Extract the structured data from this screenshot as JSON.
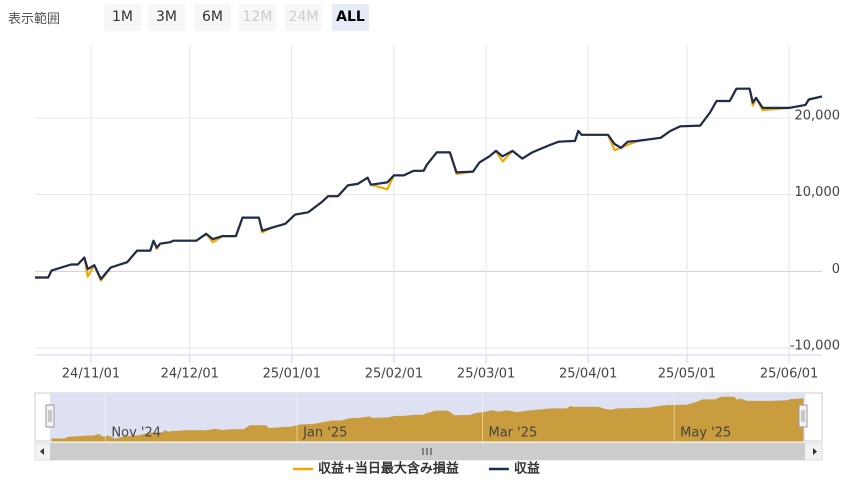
{
  "range_selector": {
    "label": "表示範囲",
    "buttons": [
      {
        "text": "1M",
        "state": "normal"
      },
      {
        "text": "3M",
        "state": "normal"
      },
      {
        "text": "6M",
        "state": "normal"
      },
      {
        "text": "12M",
        "state": "disabled"
      },
      {
        "text": "24M",
        "state": "disabled"
      },
      {
        "text": "ALL",
        "state": "selected"
      }
    ]
  },
  "chart_data": {
    "type": "line",
    "x": [
      "24/10/15",
      "24/10/19",
      "24/10/20",
      "24/10/23",
      "24/10/26",
      "24/10/28",
      "24/10/30",
      "24/10/31",
      "24/11/02",
      "24/11/04",
      "24/11/07",
      "24/11/12",
      "24/11/15",
      "24/11/19",
      "24/11/20",
      "24/11/21",
      "24/11/22",
      "24/11/25",
      "24/11/26",
      "24/12/03",
      "24/12/06",
      "24/12/08",
      "24/12/11",
      "24/12/15",
      "24/12/17",
      "24/12/22",
      "24/12/23",
      "24/12/26",
      "24/12/30",
      "25/01/02",
      "25/01/06",
      "25/01/10",
      "25/01/12",
      "25/01/15",
      "25/01/18",
      "25/01/21",
      "25/01/24",
      "25/01/25",
      "25/01/30",
      "25/02/01",
      "25/02/04",
      "25/02/07",
      "25/02/10",
      "25/02/11",
      "25/02/14",
      "25/02/18",
      "25/02/20",
      "25/02/25",
      "25/02/27",
      "25/03/02",
      "25/03/04",
      "25/03/06",
      "25/03/09",
      "25/03/12",
      "25/03/15",
      "25/03/20",
      "25/03/23",
      "25/03/28",
      "25/03/29",
      "25/03/30",
      "25/04/07",
      "25/04/09",
      "25/04/11",
      "25/04/13",
      "25/04/16",
      "25/04/23",
      "25/04/26",
      "25/04/29",
      "25/05/05",
      "25/05/08",
      "25/05/10",
      "25/05/14",
      "25/05/16",
      "25/05/20",
      "25/05/21",
      "25/05/22",
      "25/05/24",
      "25/06/01",
      "25/06/06",
      "25/06/07",
      "25/06/11"
    ],
    "series": [
      {
        "name": "収益+当日最大含み損益",
        "color": "#f2a900",
        "values": [
          -800,
          -800,
          100,
          500,
          900,
          900,
          1800,
          -700,
          800,
          -1200,
          500,
          1200,
          2700,
          2700,
          4000,
          2900,
          3600,
          3800,
          4000,
          4000,
          4900,
          3800,
          4600,
          4600,
          7000,
          7000,
          5100,
          5700,
          6200,
          7400,
          7700,
          9000,
          9800,
          9800,
          11200,
          11400,
          12200,
          11300,
          10700,
          12500,
          12500,
          13100,
          13100,
          13900,
          15500,
          15500,
          12700,
          13000,
          14200,
          15000,
          15700,
          14300,
          15700,
          14700,
          15500,
          16400,
          16900,
          17000,
          18300,
          17800,
          17800,
          15800,
          16100,
          16500,
          17000,
          17400,
          18300,
          18900,
          19000,
          20700,
          22200,
          22200,
          23800,
          23800,
          21600,
          22600,
          21000,
          21300,
          21700,
          22400,
          22800
        ]
      },
      {
        "name": "収益",
        "color": "#1c2d55",
        "values": [
          -800,
          -800,
          100,
          500,
          900,
          900,
          1800,
          300,
          800,
          -1000,
          500,
          1200,
          2700,
          2700,
          4000,
          3100,
          3600,
          3800,
          4000,
          4000,
          4900,
          4200,
          4600,
          4600,
          7000,
          7000,
          5300,
          5700,
          6200,
          7400,
          7700,
          9000,
          9800,
          9800,
          11200,
          11400,
          12200,
          11300,
          11600,
          12500,
          12500,
          13100,
          13100,
          13900,
          15500,
          15500,
          12900,
          13000,
          14200,
          15000,
          15700,
          15000,
          15700,
          14700,
          15500,
          16400,
          16900,
          17000,
          18300,
          17800,
          17800,
          16600,
          16100,
          16900,
          17000,
          17400,
          18300,
          18900,
          19000,
          20700,
          22200,
          22200,
          23800,
          23800,
          22000,
          22600,
          21300,
          21300,
          21700,
          22400,
          22800
        ]
      }
    ],
    "xlim": [
      "24/10/15",
      "25/06/11"
    ],
    "xticks": [
      "24/11/01",
      "24/12/01",
      "25/01/01",
      "25/02/01",
      "25/03/01",
      "25/04/01",
      "25/05/01",
      "25/06/01"
    ],
    "ylim": [
      -10900,
      29500
    ],
    "yticks": [
      {
        "value": -10000,
        "label": "-10,000"
      },
      0,
      {
        "value": 10000,
        "label": "10,000"
      },
      {
        "value": 20000,
        "label": "20,000"
      }
    ],
    "grid": true,
    "legend": "bottom",
    "navigator": {
      "ylim": [
        -2000,
        24500
      ],
      "color": "#c99c3e",
      "xticks": [
        {
          "value": "24/11/01",
          "label": "Nov '24"
        },
        {
          "value": "25/01/01",
          "label": "Jan '25"
        },
        {
          "value": "25/03/01",
          "label": "Mar '25"
        },
        {
          "value": "25/05/01",
          "label": "May '25"
        }
      ]
    }
  }
}
